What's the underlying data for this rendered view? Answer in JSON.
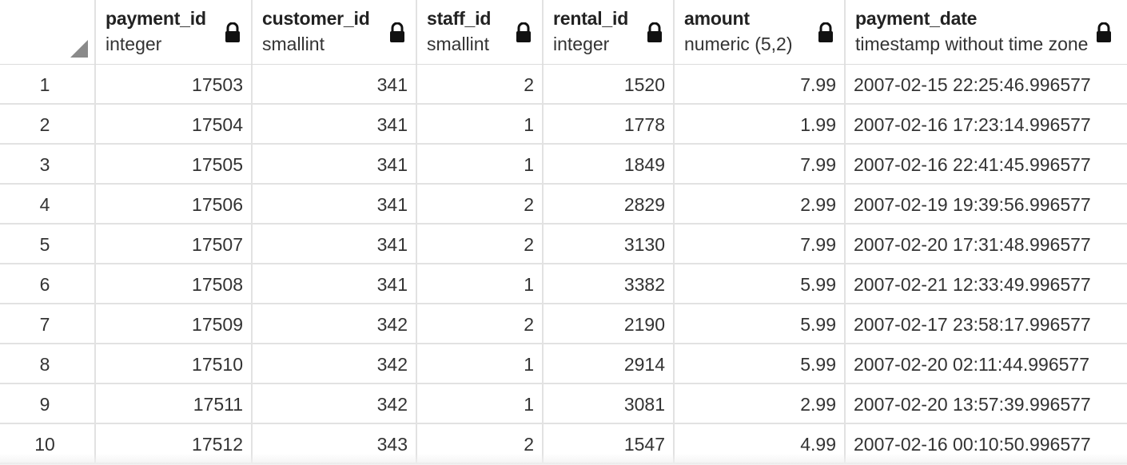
{
  "columns": [
    {
      "name": "payment_id",
      "type": "integer"
    },
    {
      "name": "customer_id",
      "type": "smallint"
    },
    {
      "name": "staff_id",
      "type": "smallint"
    },
    {
      "name": "rental_id",
      "type": "integer"
    },
    {
      "name": "amount",
      "type": "numeric (5,2)"
    },
    {
      "name": "payment_date",
      "type": "timestamp without time zone"
    }
  ],
  "rows": [
    {
      "n": "1",
      "payment_id": "17503",
      "customer_id": "341",
      "staff_id": "2",
      "rental_id": "1520",
      "amount": "7.99",
      "payment_date": "2007-02-15 22:25:46.996577"
    },
    {
      "n": "2",
      "payment_id": "17504",
      "customer_id": "341",
      "staff_id": "1",
      "rental_id": "1778",
      "amount": "1.99",
      "payment_date": "2007-02-16 17:23:14.996577"
    },
    {
      "n": "3",
      "payment_id": "17505",
      "customer_id": "341",
      "staff_id": "1",
      "rental_id": "1849",
      "amount": "7.99",
      "payment_date": "2007-02-16 22:41:45.996577"
    },
    {
      "n": "4",
      "payment_id": "17506",
      "customer_id": "341",
      "staff_id": "2",
      "rental_id": "2829",
      "amount": "2.99",
      "payment_date": "2007-02-19 19:39:56.996577"
    },
    {
      "n": "5",
      "payment_id": "17507",
      "customer_id": "341",
      "staff_id": "2",
      "rental_id": "3130",
      "amount": "7.99",
      "payment_date": "2007-02-20 17:31:48.996577"
    },
    {
      "n": "6",
      "payment_id": "17508",
      "customer_id": "341",
      "staff_id": "1",
      "rental_id": "3382",
      "amount": "5.99",
      "payment_date": "2007-02-21 12:33:49.996577"
    },
    {
      "n": "7",
      "payment_id": "17509",
      "customer_id": "342",
      "staff_id": "2",
      "rental_id": "2190",
      "amount": "5.99",
      "payment_date": "2007-02-17 23:58:17.996577"
    },
    {
      "n": "8",
      "payment_id": "17510",
      "customer_id": "342",
      "staff_id": "1",
      "rental_id": "2914",
      "amount": "5.99",
      "payment_date": "2007-02-20 02:11:44.996577"
    },
    {
      "n": "9",
      "payment_id": "17511",
      "customer_id": "342",
      "staff_id": "1",
      "rental_id": "3081",
      "amount": "2.99",
      "payment_date": "2007-02-20 13:57:39.996577"
    },
    {
      "n": "10",
      "payment_id": "17512",
      "customer_id": "343",
      "staff_id": "2",
      "rental_id": "1547",
      "amount": "4.99",
      "payment_date": "2007-02-16 00:10:50.996577"
    }
  ],
  "icons": {
    "column_lock": "lock-icon",
    "select_all": "select-all-corner-icon"
  },
  "colors": {
    "grid_line": "#e2e2e2",
    "text": "#222222",
    "icon": "#111111"
  }
}
